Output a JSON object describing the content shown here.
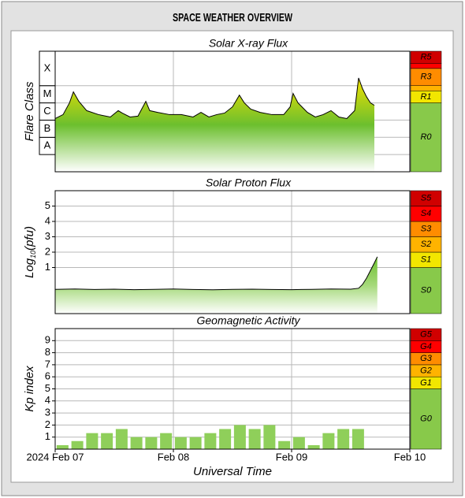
{
  "header": {
    "title": "SPACE WEATHER OVERVIEW"
  },
  "chart_data": [
    {
      "type": "area-line",
      "title": "Solar X-ray Flux",
      "ylabel": "Flare Class",
      "xlim": [
        0,
        72
      ],
      "xticks": [
        24,
        48
      ],
      "ylim": [
        -9,
        -2
      ],
      "ytick_placement": "band",
      "yticks": [
        {
          "value": -8,
          "label": "A"
        },
        {
          "value": -7,
          "label": "B"
        },
        {
          "value": -6,
          "label": "C"
        },
        {
          "value": -5,
          "label": "M"
        },
        {
          "value": -4,
          "label": "X"
        }
      ],
      "grid": true,
      "line_color": "#000000",
      "fill_colors": [
        "#f2e100",
        "#6cbf2e",
        "#ffffff"
      ],
      "x": [
        0,
        1.6,
        2.9,
        3.7,
        4.8,
        6.4,
        8.8,
        11.2,
        12.8,
        13.6,
        15.2,
        16.8,
        18.4,
        19.2,
        20.8,
        23.2,
        25.6,
        28,
        29.6,
        31.2,
        32.8,
        34.4,
        36,
        37.4,
        38.4,
        39.7,
        41.6,
        44,
        46.4,
        47.7,
        48.3,
        49.3,
        51.2,
        52.8,
        54.4,
        56,
        57.6,
        59.2,
        60.8,
        61.6,
        62.4,
        63.2,
        64,
        64.8
      ],
      "values": [
        -5.91,
        -5.68,
        -5.0,
        -4.36,
        -4.91,
        -5.45,
        -5.68,
        -5.82,
        -5.45,
        -5.59,
        -5.82,
        -5.77,
        -4.91,
        -5.45,
        -5.55,
        -5.68,
        -5.68,
        -5.82,
        -5.55,
        -5.82,
        -5.68,
        -5.59,
        -5.23,
        -4.55,
        -5.0,
        -5.36,
        -5.55,
        -5.68,
        -5.68,
        -5.23,
        -4.45,
        -5.0,
        -5.55,
        -5.82,
        -5.68,
        -5.45,
        -5.82,
        -5.91,
        -5.45,
        -3.55,
        -4.18,
        -4.64,
        -5.0,
        -5.14
      ],
      "scale": [
        {
          "name": "R0",
          "color": "#88c94a"
        },
        {
          "name": "R1",
          "from": -5,
          "color": "#f2e600"
        },
        {
          "from": -4.3,
          "color": "#ffb300"
        },
        {
          "name": "R3",
          "from": -4,
          "color": "#ff8c00"
        },
        {
          "from": -3,
          "color": "#ff0000"
        },
        {
          "name": "R5",
          "from": -2.7,
          "color": "#d00000"
        }
      ]
    },
    {
      "type": "area-line",
      "title": "Solar Proton Flux",
      "ylabel": [
        "Log",
        "10",
        "(pfu)"
      ],
      "xlim": [
        0,
        72
      ],
      "xticks": [
        24,
        48
      ],
      "ylim": [
        -2,
        6
      ],
      "yticks": [
        1,
        2,
        3,
        4,
        5
      ],
      "grid": true,
      "line_color": "#000000",
      "fill_colors": [
        "#6cbf2e",
        "#a5d97a",
        "#ffffff"
      ],
      "x": [
        0,
        4,
        8,
        12,
        16,
        20,
        24,
        28,
        32,
        36,
        40,
        44,
        48,
        52,
        56,
        60,
        61.6,
        62.4,
        63.2,
        64,
        64.8,
        65.4
      ],
      "values": [
        -0.42,
        -0.4,
        -0.43,
        -0.41,
        -0.44,
        -0.42,
        -0.4,
        -0.43,
        -0.45,
        -0.42,
        -0.41,
        -0.43,
        -0.44,
        -0.42,
        -0.4,
        -0.41,
        -0.35,
        -0.1,
        0.3,
        0.8,
        1.3,
        1.7
      ],
      "scale": [
        {
          "name": "S0",
          "color": "#88c94a"
        },
        {
          "name": "S1",
          "from": 1,
          "color": "#f2e600"
        },
        {
          "name": "S2",
          "from": 2,
          "color": "#ffb300"
        },
        {
          "name": "S3",
          "from": 3,
          "color": "#ff8c00"
        },
        {
          "name": "S4",
          "from": 4,
          "color": "#ff0000"
        },
        {
          "name": "S5",
          "from": 5,
          "color": "#d00000"
        }
      ]
    },
    {
      "type": "bar",
      "title": "Geomagnetic Activity",
      "ylabel": "Kp index",
      "xlabel": "Universal Time",
      "xlim": [
        0,
        72
      ],
      "xticks": [
        {
          "value": 0,
          "label": "2024 Feb 07"
        },
        {
          "value": 24,
          "label": "Feb 08"
        },
        {
          "value": 48,
          "label": "Feb 09"
        },
        {
          "value": 72,
          "label": "Feb 10"
        }
      ],
      "ylim": [
        0,
        10
      ],
      "yticks": [
        1,
        2,
        3,
        4,
        5,
        6,
        7,
        8,
        9
      ],
      "grid": true,
      "color": "#8fcf5a",
      "x": [
        0,
        3,
        6,
        9,
        12,
        15,
        18,
        21,
        24,
        27,
        30,
        33,
        36,
        39,
        42,
        45,
        48,
        51,
        54,
        57,
        60
      ],
      "values": [
        0.33,
        0.67,
        1.33,
        1.33,
        1.67,
        1.0,
        1.0,
        1.33,
        1.0,
        1.0,
        1.33,
        1.67,
        2.0,
        1.67,
        2.0,
        0.67,
        1.0,
        0.33,
        1.33,
        1.67,
        1.67
      ],
      "scale": [
        {
          "name": "G0",
          "color": "#88c94a"
        },
        {
          "name": "G1",
          "from": 5,
          "color": "#f2e600"
        },
        {
          "name": "G2",
          "from": 6,
          "color": "#ffb300"
        },
        {
          "name": "G3",
          "from": 7,
          "color": "#ff8c00"
        },
        {
          "name": "G4",
          "from": 8,
          "color": "#ff0000"
        },
        {
          "name": "G5",
          "from": 9,
          "color": "#d00000"
        }
      ]
    }
  ]
}
